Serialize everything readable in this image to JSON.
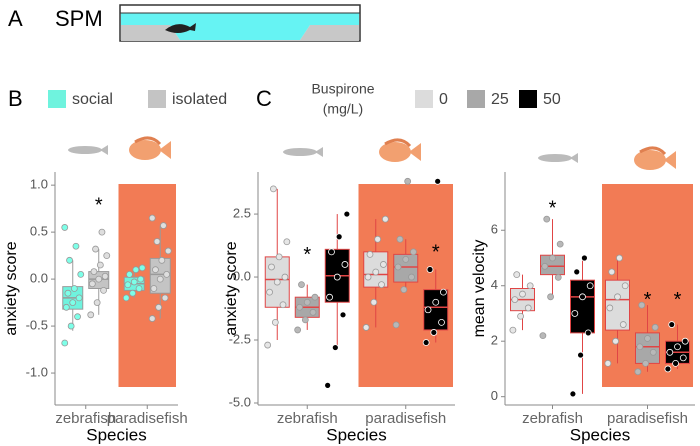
{
  "panel_a": {
    "label": "A",
    "text": "SPM"
  },
  "chart_data": [
    {
      "type": "box",
      "panel": "B",
      "ylabel": "anxiety score",
      "xlabel": "Species",
      "categories": [
        "zebrafish",
        "paradisefish"
      ],
      "highlight_category": 1,
      "highlight_color": "#f27b55",
      "ylim": [
        -1.34,
        1.14
      ],
      "yticks": [
        {
          "value": -1,
          "label": "-1.0"
        },
        {
          "value": -0.5,
          "label": "-0.5"
        },
        {
          "value": 0,
          "label": "0.0"
        },
        {
          "value": 0.5,
          "label": "0.5"
        },
        {
          "value": 1,
          "label": "1.0"
        }
      ],
      "legend": true,
      "box_edge_color": "#9a9a9a",
      "series": [
        {
          "name": "social",
          "color": "#6ff3de",
          "point_color": "#7dffe8",
          "boxes": [
            {
              "q1": -0.32,
              "median": -0.2,
              "q3": -0.08,
              "whisker_low": -0.55,
              "whisker_high": 0.2,
              "points": [
                -0.68,
                -0.5,
                -0.4,
                -0.3,
                -0.25,
                -0.2,
                -0.15,
                -0.1,
                0.05,
                0.2,
                0.35,
                0.55
              ]
            },
            {
              "q1": -0.12,
              "median": -0.05,
              "q3": 0.02,
              "whisker_low": -0.2,
              "whisker_high": 0.1,
              "points": [
                -0.2,
                -0.15,
                -0.1,
                -0.06,
                -0.03,
                0.0,
                0.05,
                0.1,
                0.12
              ]
            }
          ]
        },
        {
          "name": "isolated",
          "color": "#c4c4c4",
          "point_color": "#dedede",
          "boxes": [
            {
              "q1": -0.1,
              "median": 0.0,
              "q3": 0.08,
              "whisker_low": -0.38,
              "whisker_high": 0.32,
              "points": [
                -0.38,
                -0.25,
                -0.12,
                -0.05,
                0.0,
                0.03,
                0.08,
                0.15,
                0.25,
                0.32,
                0.5
              ]
            },
            {
              "q1": -0.15,
              "median": 0.05,
              "q3": 0.22,
              "whisker_low": -0.42,
              "whisker_high": 0.57,
              "points": [
                -0.42,
                -0.3,
                -0.2,
                -0.1,
                0.0,
                0.05,
                0.1,
                0.2,
                0.3,
                0.4,
                0.57,
                0.65
              ]
            }
          ]
        }
      ],
      "annotations": [
        {
          "text": "*",
          "category": 0,
          "series": 1,
          "y": 0.82
        }
      ]
    },
    {
      "type": "box",
      "panel": "C",
      "ylabel": "anxiety score",
      "xlabel": "Species",
      "categories": [
        "zebrafish",
        "paradisefish"
      ],
      "highlight_category": 1,
      "highlight_color": "#f27b55",
      "ylim": [
        -5.08,
        4.17
      ],
      "yticks": [
        {
          "value": -5,
          "label": "-5.0"
        },
        {
          "value": -2.5,
          "label": "-2.5"
        },
        {
          "value": 0,
          "label": "0.0"
        },
        {
          "value": 2.5,
          "label": "2.5"
        }
      ],
      "legend": true,
      "legend_title": [
        "Buspirone",
        "(mg/L)"
      ],
      "box_edge_color": "#e04545",
      "series": [
        {
          "name": "0",
          "color": "#dcdcdc",
          "point_color": "#e6e6e6",
          "boxes": [
            {
              "q1": -1.2,
              "median": -0.1,
              "q3": 0.8,
              "whisker_low": -2.5,
              "whisker_high": 3.5,
              "points": [
                -2.7,
                -1.8,
                -1.1,
                -0.6,
                -0.2,
                0.0,
                0.4,
                0.8,
                1.4,
                3.5
              ]
            },
            {
              "q1": -0.4,
              "median": 0.1,
              "q3": 1.0,
              "whisker_low": -2.0,
              "whisker_high": 2.3,
              "points": [
                -2.0,
                -1.0,
                -0.3,
                0.0,
                0.2,
                0.5,
                0.9,
                1.5,
                2.3
              ]
            }
          ]
        },
        {
          "name": "25",
          "color": "#a8a8a8",
          "point_color": "#b8b8b8",
          "boxes": [
            {
              "q1": -1.6,
              "median": -1.2,
              "q3": -0.8,
              "whisker_low": -2.1,
              "whisker_high": -0.3,
              "points": [
                -2.1,
                -1.7,
                -1.4,
                -1.2,
                -1.0,
                -0.8,
                -0.3
              ]
            },
            {
              "q1": -0.2,
              "median": 0.4,
              "q3": 0.9,
              "whisker_low": -0.5,
              "whisker_high": 1.5,
              "points": [
                -1.9,
                -0.5,
                0.0,
                0.4,
                0.7,
                1.0,
                1.5,
                3.8
              ]
            }
          ]
        },
        {
          "name": "50",
          "color": "#000000",
          "point_color": "#000000",
          "boxes": [
            {
              "q1": -1.0,
              "median": 0.05,
              "q3": 1.1,
              "whisker_low": -2.8,
              "whisker_high": 2.5,
              "points": [
                -4.3,
                -2.8,
                -1.5,
                -0.8,
                0.0,
                0.5,
                1.0,
                1.6,
                2.5
              ]
            },
            {
              "q1": -2.1,
              "median": -1.2,
              "q3": -0.5,
              "whisker_low": -2.6,
              "whisker_high": 0.3,
              "points": [
                -2.6,
                -2.2,
                -1.8,
                -1.3,
                -1.0,
                -0.6,
                0.3,
                3.8
              ]
            }
          ]
        }
      ],
      "annotations": [
        {
          "text": "*",
          "category": 0,
          "series": 1,
          "y": 1.0
        },
        {
          "text": "*",
          "category": 1,
          "series": 2,
          "y": 1.1
        }
      ]
    },
    {
      "type": "box",
      "ylabel": "mean velocity",
      "xlabel": "Species",
      "categories": [
        "zebrafish",
        "paradisefish"
      ],
      "highlight_category": 1,
      "highlight_color": "#f27b55",
      "ylim": [
        -0.3,
        8.1
      ],
      "yticks": [
        0,
        2,
        4,
        6
      ],
      "legend": false,
      "box_edge_color": "#e04545",
      "series": [
        {
          "name": "0",
          "color": "#dcdcdc",
          "point_color": "#e6e6e6",
          "boxes": [
            {
              "q1": 3.1,
              "median": 3.5,
              "q3": 3.9,
              "whisker_low": 2.4,
              "whisker_high": 4.4,
              "points": [
                2.4,
                2.9,
                3.2,
                3.5,
                3.7,
                4.0,
                4.4
              ]
            },
            {
              "q1": 2.4,
              "median": 3.5,
              "q3": 4.2,
              "whisker_low": 1.2,
              "whisker_high": 5.0,
              "points": [
                1.2,
                2.0,
                2.6,
                3.2,
                3.6,
                4.0,
                4.5,
                5.0
              ]
            }
          ]
        },
        {
          "name": "25",
          "color": "#a8a8a8",
          "point_color": "#b8b8b8",
          "boxes": [
            {
              "q1": 4.4,
              "median": 4.7,
              "q3": 5.1,
              "whisker_low": 3.6,
              "whisker_high": 6.4,
              "points": [
                2.2,
                3.6,
                4.3,
                4.7,
                5.0,
                5.5,
                6.4
              ]
            },
            {
              "q1": 1.2,
              "median": 1.8,
              "q3": 2.3,
              "whisker_low": 0.9,
              "whisker_high": 3.3,
              "points": [
                0.9,
                1.2,
                1.6,
                1.8,
                2.1,
                2.5,
                3.3
              ]
            }
          ]
        },
        {
          "name": "50",
          "color": "#000000",
          "point_color": "#000000",
          "boxes": [
            {
              "q1": 2.3,
              "median": 3.6,
              "q3": 4.2,
              "whisker_low": 0.1,
              "whisker_high": 5.0,
              "points": [
                0.1,
                1.5,
                2.3,
                3.0,
                3.6,
                4.0,
                4.5,
                5.0
              ]
            },
            {
              "q1": 1.2,
              "median": 1.6,
              "q3": 2.0,
              "whisker_low": 1.0,
              "whisker_high": 2.6,
              "points": [
                1.0,
                1.2,
                1.4,
                1.6,
                1.8,
                2.0,
                2.6
              ]
            }
          ]
        }
      ],
      "annotations": [
        {
          "text": "*",
          "category": 0,
          "series": 1,
          "y": 6.9
        },
        {
          "text": "*",
          "category": 1,
          "series": 1,
          "y": 3.6
        },
        {
          "text": "*",
          "category": 1,
          "series": 2,
          "y": 3.6
        }
      ]
    }
  ]
}
